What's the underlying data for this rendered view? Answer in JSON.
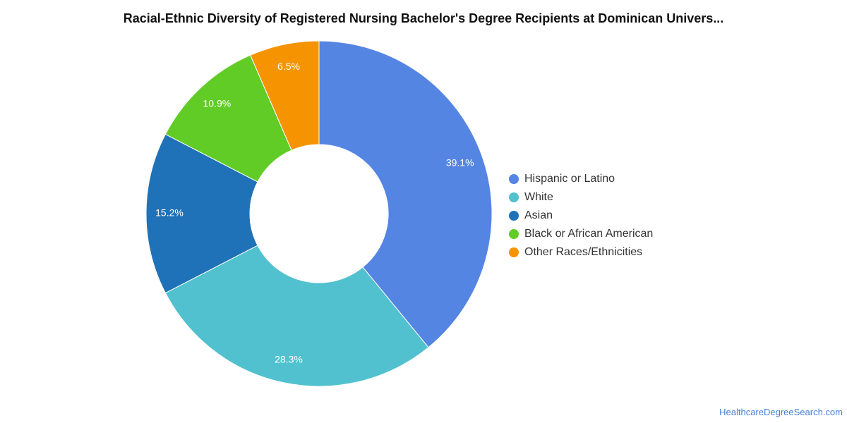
{
  "title": "Racial-Ethnic Diversity of Registered Nursing Bachelor's Degree Recipients at Dominican Univers...",
  "watermark": "HealthcareDegreeSearch.com",
  "legend_position": "right",
  "chart_data": {
    "type": "pie",
    "variant": "donut",
    "title": "Racial-Ethnic Diversity of Registered Nursing Bachelor's Degree Recipients at Dominican Univers...",
    "categories": [
      "Hispanic or Latino",
      "White",
      "Asian",
      "Black or African American",
      "Other Races/Ethnicities"
    ],
    "values": [
      39.1,
      28.3,
      15.2,
      10.9,
      6.5
    ],
    "labels": [
      "39.1%",
      "28.3%",
      "15.2%",
      "10.9%",
      "6.5%"
    ],
    "colors": [
      "#5585e3",
      "#52c1cf",
      "#1f72b8",
      "#62cc26",
      "#f59400"
    ],
    "legend": "right"
  }
}
